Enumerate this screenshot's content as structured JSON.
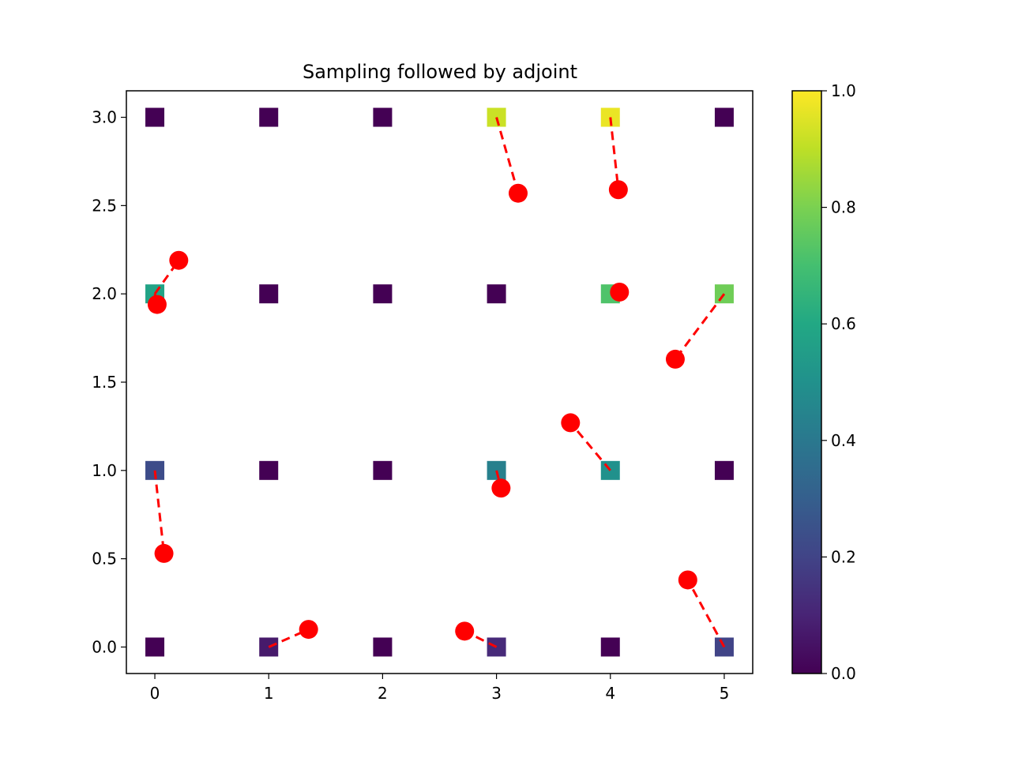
{
  "chart_data": {
    "type": "scatter",
    "title": "Sampling followed by adjoint",
    "xlabel": "",
    "ylabel": "",
    "xlim": [
      -0.25,
      5.25
    ],
    "ylim": [
      -0.15,
      3.15
    ],
    "x_ticks": [
      "0",
      "1",
      "2",
      "3",
      "4",
      "5"
    ],
    "y_ticks": [
      "0.0",
      "0.5",
      "1.0",
      "1.5",
      "2.0",
      "2.5",
      "3.0"
    ],
    "grid": false,
    "colormap": "viridis",
    "colorbar": {
      "min": 0.0,
      "max": 1.0,
      "ticks": [
        "0.0",
        "0.2",
        "0.4",
        "0.6",
        "0.8",
        "1.0"
      ]
    },
    "grid_values": [
      {
        "x": 0,
        "y": 0,
        "value": 0.0
      },
      {
        "x": 1,
        "y": 0,
        "value": 0.07
      },
      {
        "x": 2,
        "y": 0,
        "value": 0.0
      },
      {
        "x": 3,
        "y": 0,
        "value": 0.12
      },
      {
        "x": 4,
        "y": 0,
        "value": 0.0
      },
      {
        "x": 5,
        "y": 0,
        "value": 0.2
      },
      {
        "x": 0,
        "y": 1,
        "value": 0.23
      },
      {
        "x": 1,
        "y": 1,
        "value": 0.0
      },
      {
        "x": 2,
        "y": 1,
        "value": 0.0
      },
      {
        "x": 3,
        "y": 1,
        "value": 0.43
      },
      {
        "x": 4,
        "y": 1,
        "value": 0.5
      },
      {
        "x": 5,
        "y": 1,
        "value": 0.0
      },
      {
        "x": 0,
        "y": 2,
        "value": 0.58
      },
      {
        "x": 1,
        "y": 2,
        "value": 0.0
      },
      {
        "x": 2,
        "y": 2,
        "value": 0.0
      },
      {
        "x": 3,
        "y": 2,
        "value": 0.0
      },
      {
        "x": 4,
        "y": 2,
        "value": 0.72
      },
      {
        "x": 5,
        "y": 2,
        "value": 0.78
      },
      {
        "x": 0,
        "y": 3,
        "value": 0.0
      },
      {
        "x": 1,
        "y": 3,
        "value": 0.0
      },
      {
        "x": 2,
        "y": 3,
        "value": 0.0
      },
      {
        "x": 3,
        "y": 3,
        "value": 0.92
      },
      {
        "x": 4,
        "y": 3,
        "value": 0.97
      },
      {
        "x": 5,
        "y": 3,
        "value": 0.0
      }
    ],
    "sample_points": [
      {
        "x": 0.21,
        "y": 2.19,
        "from": [
          0,
          2
        ]
      },
      {
        "x": 0.02,
        "y": 1.94,
        "from": [
          0,
          2
        ]
      },
      {
        "x": 0.08,
        "y": 0.53,
        "from": [
          0,
          1
        ]
      },
      {
        "x": 1.35,
        "y": 0.1,
        "from": [
          1,
          0
        ]
      },
      {
        "x": 2.72,
        "y": 0.09,
        "from": [
          3,
          0
        ]
      },
      {
        "x": 3.04,
        "y": 0.9,
        "from": [
          3,
          1
        ]
      },
      {
        "x": 3.19,
        "y": 2.57,
        "from": [
          3,
          3
        ]
      },
      {
        "x": 3.65,
        "y": 1.27,
        "from": [
          4,
          1
        ]
      },
      {
        "x": 4.07,
        "y": 2.59,
        "from": [
          4,
          3
        ]
      },
      {
        "x": 4.08,
        "y": 2.01,
        "from": [
          4,
          2
        ]
      },
      {
        "x": 4.57,
        "y": 1.63,
        "from": [
          5,
          2
        ]
      },
      {
        "x": 4.68,
        "y": 0.38,
        "from": [
          5,
          0
        ]
      }
    ],
    "marker_color": "#ff0000",
    "line_style": "dashed"
  }
}
